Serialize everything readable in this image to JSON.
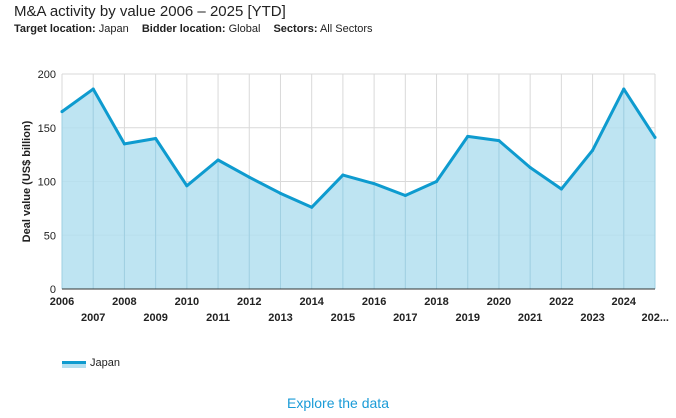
{
  "header": {
    "title": "M&A activity by value 2006 – 2025 [YTD]",
    "filters": [
      {
        "label": "Target location:",
        "value": "Japan"
      },
      {
        "label": "Bidder location:",
        "value": "Global"
      },
      {
        "label": "Sectors:",
        "value": "All Sectors"
      }
    ]
  },
  "colors": {
    "line": "#0e9bcf",
    "area": "#b3dff0",
    "grid": "#d9d9d9",
    "link": "#1a9bd7"
  },
  "chart_data": {
    "type": "area",
    "x": [
      "2006",
      "2007",
      "2008",
      "2009",
      "2010",
      "2011",
      "2012",
      "2013",
      "2014",
      "2015",
      "2016",
      "2017",
      "2018",
      "2019",
      "2020",
      "2021",
      "2022",
      "2023",
      "2024",
      "202..."
    ],
    "series": [
      {
        "name": "Japan",
        "values": [
          165,
          186,
          135,
          140,
          96,
          120,
          104,
          89,
          76,
          106,
          98,
          87,
          100,
          142,
          138,
          113,
          93,
          129,
          186,
          141
        ]
      }
    ],
    "ylabel": "Deal value (US$ billion)",
    "xlabel": "",
    "ylim": [
      0,
      200
    ],
    "yticks": [
      0,
      50,
      100,
      150,
      200
    ],
    "grid": true,
    "legend_position": "bottom-left"
  },
  "legend": {
    "label": "Japan"
  },
  "footer": {
    "link_label": "Explore the data"
  }
}
